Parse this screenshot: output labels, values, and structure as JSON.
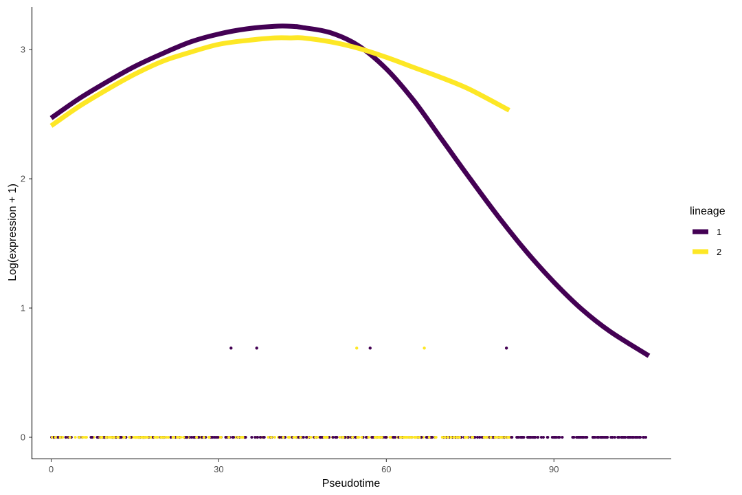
{
  "chart_data": {
    "type": "line",
    "xlabel": "Pseudotime",
    "ylabel": "Log(expression + 1)",
    "xlim": [
      -3.5,
      111
    ],
    "ylim": [
      -0.17,
      3.33
    ],
    "x_ticks": [
      0,
      30,
      60,
      90
    ],
    "x_tick_labels": [
      "0",
      "30",
      "60",
      "90"
    ],
    "y_ticks": [
      0,
      1,
      2,
      3
    ],
    "y_tick_labels": [
      "0",
      "1",
      "2",
      "3"
    ],
    "grid": false,
    "legend": {
      "title": "lineage",
      "position": "right",
      "entries": [
        {
          "label": "1",
          "color": "#440154"
        },
        {
          "label": "2",
          "color": "#FDE725"
        }
      ]
    },
    "series": [
      {
        "color": "#440154",
        "x": [
          0,
          5,
          10,
          15,
          20,
          25,
          30,
          35,
          40,
          43,
          45,
          50,
          55,
          60,
          65,
          70,
          75,
          80,
          85,
          90,
          95,
          100,
          107
        ],
        "y": [
          2.47,
          2.62,
          2.75,
          2.87,
          2.97,
          3.06,
          3.12,
          3.16,
          3.18,
          3.18,
          3.17,
          3.13,
          3.03,
          2.85,
          2.6,
          2.3,
          2.0,
          1.71,
          1.44,
          1.2,
          0.99,
          0.82,
          0.63
        ]
      },
      {
        "color": "#FDE725",
        "x": [
          0,
          5,
          10,
          15,
          20,
          25,
          30,
          35,
          40,
          43,
          45,
          50,
          55,
          60,
          65,
          70,
          75,
          82
        ],
        "y": [
          2.41,
          2.56,
          2.69,
          2.81,
          2.91,
          2.98,
          3.04,
          3.07,
          3.09,
          3.09,
          3.09,
          3.06,
          3.01,
          2.94,
          2.86,
          2.78,
          2.69,
          2.53
        ]
      }
    ],
    "points": {
      "lineage_1_nonzero": {
        "x": [
          32.2,
          36.8,
          57.1,
          81.5
        ],
        "y": [
          0.69,
          0.69,
          0.69,
          0.69
        ]
      },
      "lineage_2_nonzero": {
        "x": [
          54.7,
          66.8
        ],
        "y": [
          0.69,
          0.69
        ]
      },
      "zero_points_x_range": [
        0,
        107
      ],
      "zero_points_y": 0
    }
  }
}
